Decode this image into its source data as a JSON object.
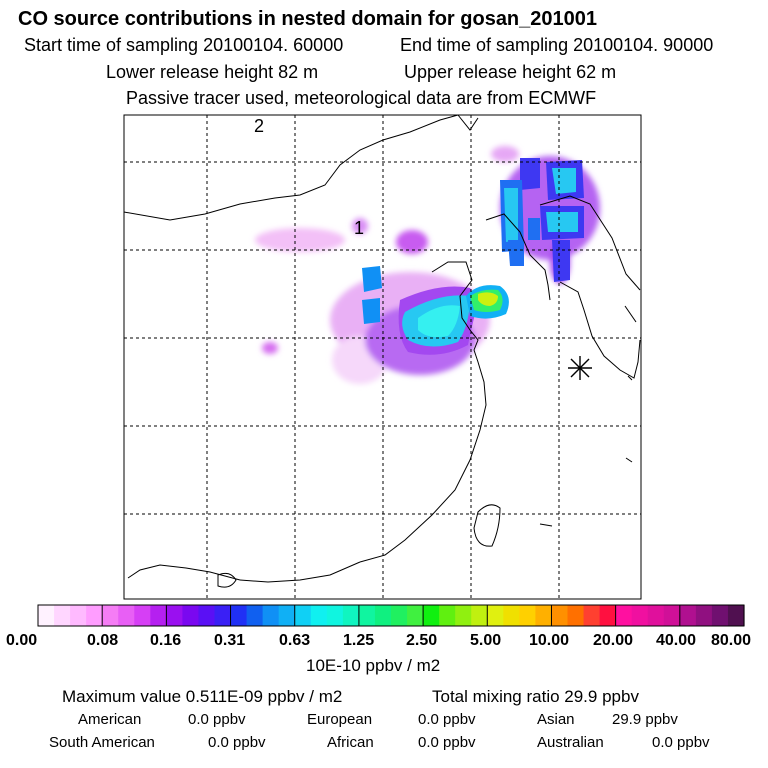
{
  "header": {
    "title": "CO  source contributions in nested domain for gosan_201001",
    "start_time": "Start time of sampling 20100104. 60000",
    "end_time": "End time of sampling 20100104. 90000",
    "lower_release": "Lower release height   82 m",
    "upper_release": "Upper release height   62 m",
    "tracer_note": "Passive tracer used, meteorological data are from ECMWF"
  },
  "map": {
    "grid_label_1": "1",
    "grid_label_2": "2",
    "receptor_marker": "star-icon"
  },
  "colorbar": {
    "tick_labels": [
      "0.00",
      "0.08",
      "0.16",
      "0.31",
      "0.63",
      "1.25",
      "2.50",
      "5.00",
      "10.00",
      "20.00",
      "40.00",
      "80.00"
    ],
    "unit": "10E-10 ppbv / m2",
    "colors": [
      "#fff2ff",
      "#ffd6ff",
      "#ffbaff",
      "#ff9dff",
      "#f57df5",
      "#e85ff5",
      "#d63ff5",
      "#b520f0",
      "#9a10f0",
      "#7a08f0",
      "#5a10f5",
      "#3a20f5",
      "#2030f5",
      "#1060f0",
      "#1090f5",
      "#10b0f5",
      "#10d0f5",
      "#10f0f0",
      "#10f5e0",
      "#10f5c0",
      "#10f5a0",
      "#10f080",
      "#20f060",
      "#40f040",
      "#10f010",
      "#60f010",
      "#90f010",
      "#c0f010",
      "#e0f010",
      "#f0e000",
      "#ffd000",
      "#ffb000",
      "#ff9000",
      "#ff7000",
      "#ff4030",
      "#ff1040",
      "#ff10a0",
      "#f010a0",
      "#e0109c",
      "#d01098",
      "#b01090",
      "#901080",
      "#701070",
      "#501050"
    ]
  },
  "stats": {
    "maximum_value": "Maximum value  0.511E-09 ppbv / m2",
    "total_mixing": "Total mixing ratio       29.9 ppbv",
    "american_label": "American",
    "american_value": "0.0 ppbv",
    "european_label": "European",
    "european_value": "0.0 ppbv",
    "asian_label": "Asian",
    "asian_value": "29.9 ppbv",
    "south_american_label": "South American",
    "south_american_value": "0.0 ppbv",
    "african_label": "African",
    "african_value": "0.0 ppbv",
    "australian_label": "Australian",
    "australian_value": "0.0 ppbv"
  }
}
